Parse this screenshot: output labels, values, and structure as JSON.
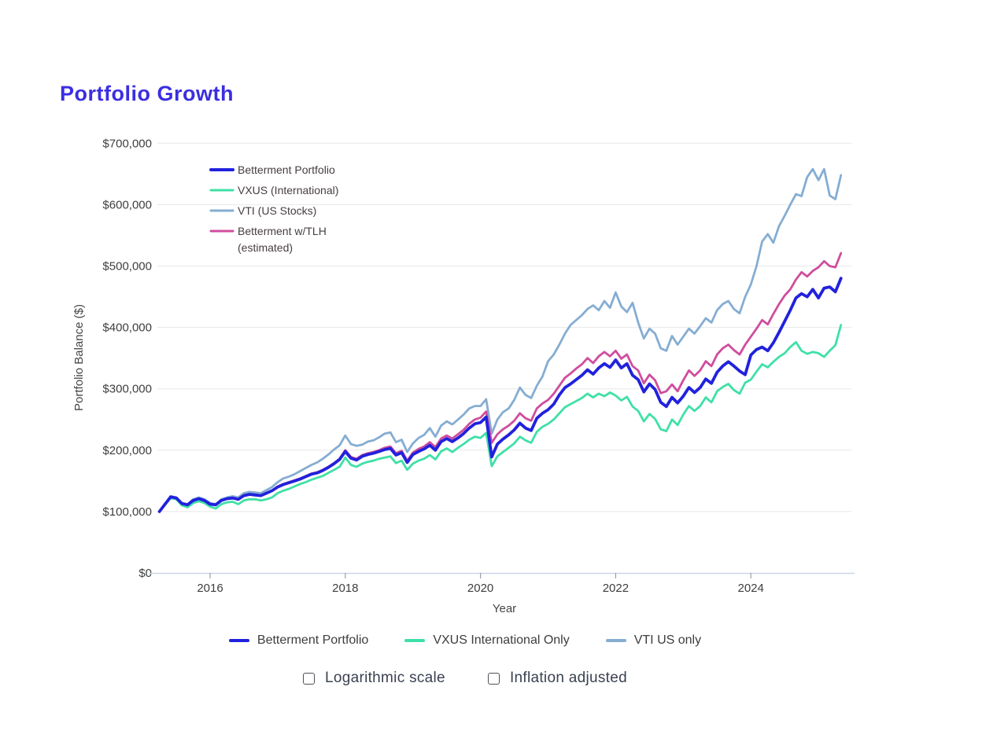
{
  "page": {
    "title": "Portfolio Growth",
    "title_color": "#3b2ee0"
  },
  "chart_data": {
    "type": "line",
    "title": "Portfolio Growth",
    "xlabel": "Year",
    "ylabel": "Portfolio Balance ($)",
    "interval": "monthly",
    "x_start": "2015-04",
    "x_end": "2025-05",
    "x_ticks": [
      2016,
      2018,
      2020,
      2022,
      2024
    ],
    "ylim": [
      0,
      700000
    ],
    "y_tick_labels": [
      "$0",
      "$100,000",
      "$200,000",
      "$300,000",
      "$400,000",
      "$500,000",
      "$600,000",
      "$700,000"
    ],
    "grid": "horizontal",
    "legend_position": "upper-left-inside",
    "units": "USD thousands",
    "series": [
      {
        "name": "Betterment Portfolio",
        "legend_lines": [
          "Betterment Portfolio"
        ],
        "color": "#2121dd",
        "width": 3.8,
        "values": [
          100,
          112,
          124,
          122,
          113,
          111,
          118,
          121,
          118,
          112,
          111,
          118,
          121,
          122,
          120,
          126,
          128,
          127,
          126,
          130,
          134,
          140,
          144,
          147,
          150,
          153,
          157,
          161,
          163,
          167,
          172,
          178,
          185,
          198,
          187,
          184,
          190,
          193,
          195,
          198,
          201,
          203,
          192,
          196,
          180,
          193,
          198,
          202,
          208,
          200,
          214,
          219,
          214,
          220,
          227,
          236,
          243,
          245,
          254,
          189,
          210,
          218,
          225,
          233,
          244,
          236,
          232,
          252,
          260,
          266,
          275,
          290,
          302,
          308,
          315,
          322,
          331,
          324,
          334,
          341,
          335,
          347,
          334,
          341,
          322,
          315,
          295,
          308,
          299,
          278,
          271,
          286,
          277,
          288,
          302,
          294,
          302,
          316,
          309,
          327,
          337,
          344,
          337,
          329,
          323,
          355,
          364,
          368,
          362,
          375,
          392,
          410,
          428,
          448,
          455,
          450,
          462,
          448,
          464,
          466,
          458,
          480
        ]
      },
      {
        "name": "VXUS (International)",
        "legend_lines": [
          "VXUS (International)"
        ],
        "color": "#3fe0a6",
        "width": 2.8,
        "values": [
          100,
          111,
          122,
          120,
          110,
          107,
          114,
          117,
          114,
          108,
          105,
          112,
          115,
          116,
          112,
          118,
          120,
          120,
          118,
          120,
          123,
          130,
          134,
          137,
          141,
          145,
          148,
          152,
          155,
          158,
          163,
          168,
          173,
          188,
          176,
          173,
          178,
          181,
          183,
          186,
          188,
          190,
          179,
          183,
          168,
          178,
          183,
          186,
          192,
          185,
          198,
          203,
          197,
          204,
          210,
          217,
          222,
          220,
          228,
          174,
          190,
          197,
          204,
          211,
          222,
          216,
          212,
          230,
          238,
          243,
          250,
          260,
          270,
          275,
          280,
          285,
          292,
          286,
          292,
          288,
          294,
          289,
          281,
          287,
          271,
          264,
          247,
          259,
          251,
          234,
          231,
          250,
          241,
          258,
          272,
          264,
          272,
          286,
          278,
          296,
          303,
          308,
          298,
          292,
          310,
          315,
          328,
          340,
          335,
          344,
          352,
          358,
          368,
          376,
          362,
          357,
          360,
          358,
          352,
          362,
          371,
          404
        ]
      },
      {
        "name": "VTI (US Stocks)",
        "legend_lines": [
          "VTI (US Stocks)"
        ],
        "color": "#85add2",
        "width": 2.8,
        "values": [
          100,
          112,
          125,
          123,
          114,
          112,
          120,
          123,
          120,
          114,
          112,
          120,
          123,
          125,
          123,
          130,
          132,
          131,
          130,
          135,
          140,
          148,
          154,
          157,
          161,
          166,
          171,
          176,
          180,
          186,
          193,
          201,
          208,
          224,
          210,
          207,
          209,
          214,
          216,
          221,
          227,
          229,
          213,
          217,
          197,
          211,
          220,
          225,
          236,
          222,
          240,
          247,
          242,
          250,
          258,
          268,
          272,
          272,
          283,
          227,
          250,
          262,
          268,
          282,
          302,
          290,
          285,
          305,
          320,
          345,
          356,
          372,
          390,
          404,
          412,
          420,
          430,
          436,
          428,
          443,
          432,
          457,
          434,
          425,
          440,
          408,
          382,
          398,
          390,
          366,
          362,
          386,
          372,
          385,
          398,
          390,
          402,
          415,
          408,
          428,
          438,
          443,
          430,
          423,
          450,
          470,
          500,
          540,
          552,
          538,
          565,
          582,
          600,
          617,
          614,
          645,
          658,
          640,
          658,
          615,
          609,
          648
        ]
      },
      {
        "name": "Betterment w/TLH (estimated)",
        "legend_lines": [
          "Betterment w/TLH",
          "(estimated)"
        ],
        "color": "#cf4d9d",
        "width": 2.8,
        "values": [
          100,
          112,
          124,
          122,
          113,
          111,
          118,
          121,
          118,
          112,
          111,
          118,
          121,
          122,
          120,
          126,
          128,
          127,
          126,
          130,
          134,
          141,
          145,
          148,
          151,
          154,
          158,
          162,
          164,
          168,
          173,
          179,
          186,
          200,
          189,
          186,
          192,
          195,
          197,
          200,
          204,
          206,
          195,
          199,
          183,
          196,
          202,
          206,
          213,
          205,
          219,
          224,
          219,
          226,
          233,
          243,
          250,
          253,
          263,
          212,
          226,
          234,
          240,
          248,
          260,
          252,
          248,
          268,
          276,
          282,
          292,
          305,
          318,
          325,
          333,
          340,
          350,
          342,
          353,
          360,
          353,
          362,
          349,
          356,
          337,
          330,
          309,
          323,
          314,
          293,
          296,
          307,
          296,
          314,
          330,
          321,
          330,
          345,
          337,
          356,
          366,
          372,
          363,
          356,
          372,
          385,
          398,
          412,
          405,
          422,
          438,
          452,
          462,
          478,
          490,
          483,
          492,
          498,
          508,
          500,
          498,
          521
        ]
      }
    ]
  },
  "bottom_legend": {
    "items": [
      {
        "label": "Betterment Portfolio",
        "color": "#2121dd"
      },
      {
        "label": "VXUS International Only",
        "color": "#3fe0a6"
      },
      {
        "label": "VTI US only",
        "color": "#85add2"
      }
    ]
  },
  "controls": {
    "checkboxes": [
      {
        "label": "Logarithmic scale",
        "checked": false
      },
      {
        "label": "Inflation adjusted",
        "checked": false
      }
    ]
  }
}
